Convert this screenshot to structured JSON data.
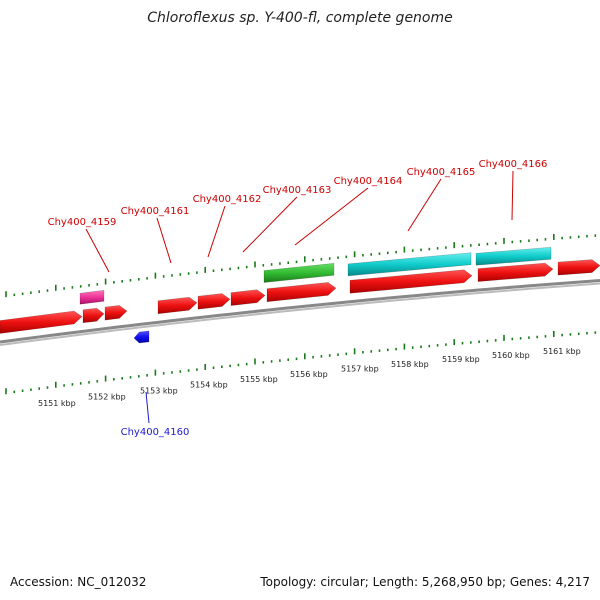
{
  "title": "Chloroflexus sp. Y-400-fl, complete genome",
  "footer": {
    "accession": "Accession: NC_012032",
    "summary": "Topology: circular; Length: 5,268,950 bp; Genes: 4,217"
  },
  "colors": {
    "cds": "#ee1111",
    "rrna": "#11cccc",
    "trna": "#33bb33",
    "misc": "#ee3399",
    "reverse_feature": "#1111ee",
    "backbone": "#888888",
    "tick": "#1a7a1a",
    "forward_label": "#cc0000",
    "reverse_label": "#1a1acc"
  },
  "axis": {
    "unit": "kbp",
    "labels": [
      "5151 kbp",
      "5152 kbp",
      "5153 kbp",
      "5154 kbp",
      "5155 kbp",
      "5156 kbp",
      "5157 kbp",
      "5158 kbp",
      "5159 kbp",
      "5160 kbp",
      "5161 kbp"
    ]
  },
  "gene_labels": [
    {
      "name": "Chy400_4159",
      "strand": "forward"
    },
    {
      "name": "Chy400_4160",
      "strand": "reverse"
    },
    {
      "name": "Chy400_4161",
      "strand": "forward"
    },
    {
      "name": "Chy400_4162",
      "strand": "forward"
    },
    {
      "name": "Chy400_4163",
      "strand": "forward"
    },
    {
      "name": "Chy400_4164",
      "strand": "forward"
    },
    {
      "name": "Chy400_4165",
      "strand": "forward"
    },
    {
      "name": "Chy400_4166",
      "strand": "forward"
    }
  ]
}
